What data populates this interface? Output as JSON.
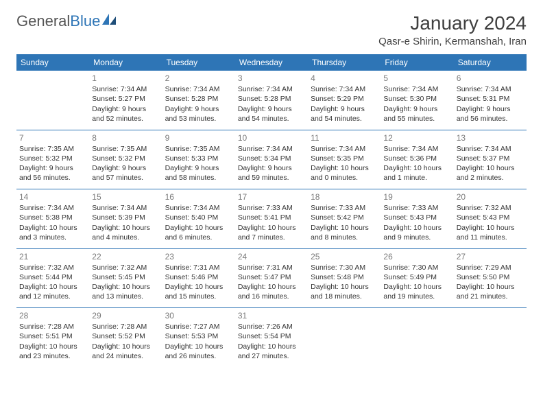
{
  "brand": {
    "part1": "General",
    "part2": "Blue"
  },
  "title": "January 2024",
  "location": "Qasr-e Shirin, Kermanshah, Iran",
  "colors": {
    "header_bg": "#2e75b6",
    "header_text": "#ffffff",
    "sep_line": "#2e75b6",
    "daynum": "#7a7a7a",
    "body_text": "#333333",
    "page_bg": "#ffffff"
  },
  "day_headers": [
    "Sunday",
    "Monday",
    "Tuesday",
    "Wednesday",
    "Thursday",
    "Friday",
    "Saturday"
  ],
  "weeks": [
    [
      null,
      {
        "n": "1",
        "sr": "Sunrise: 7:34 AM",
        "ss": "Sunset: 5:27 PM",
        "dl": "Daylight: 9 hours and 52 minutes."
      },
      {
        "n": "2",
        "sr": "Sunrise: 7:34 AM",
        "ss": "Sunset: 5:28 PM",
        "dl": "Daylight: 9 hours and 53 minutes."
      },
      {
        "n": "3",
        "sr": "Sunrise: 7:34 AM",
        "ss": "Sunset: 5:28 PM",
        "dl": "Daylight: 9 hours and 54 minutes."
      },
      {
        "n": "4",
        "sr": "Sunrise: 7:34 AM",
        "ss": "Sunset: 5:29 PM",
        "dl": "Daylight: 9 hours and 54 minutes."
      },
      {
        "n": "5",
        "sr": "Sunrise: 7:34 AM",
        "ss": "Sunset: 5:30 PM",
        "dl": "Daylight: 9 hours and 55 minutes."
      },
      {
        "n": "6",
        "sr": "Sunrise: 7:34 AM",
        "ss": "Sunset: 5:31 PM",
        "dl": "Daylight: 9 hours and 56 minutes."
      }
    ],
    [
      {
        "n": "7",
        "sr": "Sunrise: 7:35 AM",
        "ss": "Sunset: 5:32 PM",
        "dl": "Daylight: 9 hours and 56 minutes."
      },
      {
        "n": "8",
        "sr": "Sunrise: 7:35 AM",
        "ss": "Sunset: 5:32 PM",
        "dl": "Daylight: 9 hours and 57 minutes."
      },
      {
        "n": "9",
        "sr": "Sunrise: 7:35 AM",
        "ss": "Sunset: 5:33 PM",
        "dl": "Daylight: 9 hours and 58 minutes."
      },
      {
        "n": "10",
        "sr": "Sunrise: 7:34 AM",
        "ss": "Sunset: 5:34 PM",
        "dl": "Daylight: 9 hours and 59 minutes."
      },
      {
        "n": "11",
        "sr": "Sunrise: 7:34 AM",
        "ss": "Sunset: 5:35 PM",
        "dl": "Daylight: 10 hours and 0 minutes."
      },
      {
        "n": "12",
        "sr": "Sunrise: 7:34 AM",
        "ss": "Sunset: 5:36 PM",
        "dl": "Daylight: 10 hours and 1 minute."
      },
      {
        "n": "13",
        "sr": "Sunrise: 7:34 AM",
        "ss": "Sunset: 5:37 PM",
        "dl": "Daylight: 10 hours and 2 minutes."
      }
    ],
    [
      {
        "n": "14",
        "sr": "Sunrise: 7:34 AM",
        "ss": "Sunset: 5:38 PM",
        "dl": "Daylight: 10 hours and 3 minutes."
      },
      {
        "n": "15",
        "sr": "Sunrise: 7:34 AM",
        "ss": "Sunset: 5:39 PM",
        "dl": "Daylight: 10 hours and 4 minutes."
      },
      {
        "n": "16",
        "sr": "Sunrise: 7:34 AM",
        "ss": "Sunset: 5:40 PM",
        "dl": "Daylight: 10 hours and 6 minutes."
      },
      {
        "n": "17",
        "sr": "Sunrise: 7:33 AM",
        "ss": "Sunset: 5:41 PM",
        "dl": "Daylight: 10 hours and 7 minutes."
      },
      {
        "n": "18",
        "sr": "Sunrise: 7:33 AM",
        "ss": "Sunset: 5:42 PM",
        "dl": "Daylight: 10 hours and 8 minutes."
      },
      {
        "n": "19",
        "sr": "Sunrise: 7:33 AM",
        "ss": "Sunset: 5:43 PM",
        "dl": "Daylight: 10 hours and 9 minutes."
      },
      {
        "n": "20",
        "sr": "Sunrise: 7:32 AM",
        "ss": "Sunset: 5:43 PM",
        "dl": "Daylight: 10 hours and 11 minutes."
      }
    ],
    [
      {
        "n": "21",
        "sr": "Sunrise: 7:32 AM",
        "ss": "Sunset: 5:44 PM",
        "dl": "Daylight: 10 hours and 12 minutes."
      },
      {
        "n": "22",
        "sr": "Sunrise: 7:32 AM",
        "ss": "Sunset: 5:45 PM",
        "dl": "Daylight: 10 hours and 13 minutes."
      },
      {
        "n": "23",
        "sr": "Sunrise: 7:31 AM",
        "ss": "Sunset: 5:46 PM",
        "dl": "Daylight: 10 hours and 15 minutes."
      },
      {
        "n": "24",
        "sr": "Sunrise: 7:31 AM",
        "ss": "Sunset: 5:47 PM",
        "dl": "Daylight: 10 hours and 16 minutes."
      },
      {
        "n": "25",
        "sr": "Sunrise: 7:30 AM",
        "ss": "Sunset: 5:48 PM",
        "dl": "Daylight: 10 hours and 18 minutes."
      },
      {
        "n": "26",
        "sr": "Sunrise: 7:30 AM",
        "ss": "Sunset: 5:49 PM",
        "dl": "Daylight: 10 hours and 19 minutes."
      },
      {
        "n": "27",
        "sr": "Sunrise: 7:29 AM",
        "ss": "Sunset: 5:50 PM",
        "dl": "Daylight: 10 hours and 21 minutes."
      }
    ],
    [
      {
        "n": "28",
        "sr": "Sunrise: 7:28 AM",
        "ss": "Sunset: 5:51 PM",
        "dl": "Daylight: 10 hours and 23 minutes."
      },
      {
        "n": "29",
        "sr": "Sunrise: 7:28 AM",
        "ss": "Sunset: 5:52 PM",
        "dl": "Daylight: 10 hours and 24 minutes."
      },
      {
        "n": "30",
        "sr": "Sunrise: 7:27 AM",
        "ss": "Sunset: 5:53 PM",
        "dl": "Daylight: 10 hours and 26 minutes."
      },
      {
        "n": "31",
        "sr": "Sunrise: 7:26 AM",
        "ss": "Sunset: 5:54 PM",
        "dl": "Daylight: 10 hours and 27 minutes."
      },
      null,
      null,
      null
    ]
  ]
}
